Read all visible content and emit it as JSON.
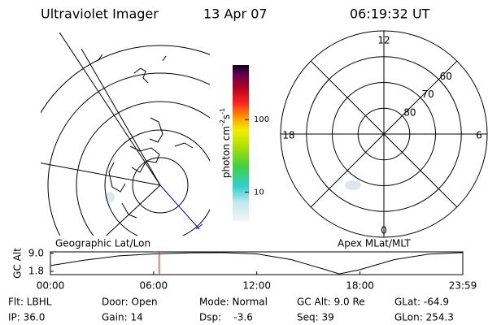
{
  "header": {
    "title": "Ultraviolet Imager",
    "date": "13 Apr 07",
    "time": "06:19:32 UT"
  },
  "colorbar": {
    "label": {
      "base": "photon cm",
      "exp1": "-2",
      "mid": "s",
      "exp2": "-1"
    },
    "log": true,
    "lim": [
      4,
      565
    ],
    "ticks": [
      10,
      100
    ]
  },
  "map": {
    "label": "Geographic Lat/Lon"
  },
  "polar": {
    "label": "Apex MLat/MLT",
    "mlat_lim": [
      50,
      90
    ],
    "mlat_ticks": [
      60,
      70,
      80
    ],
    "mlt_ticks": [
      12,
      18,
      6,
      0
    ]
  },
  "altitude_plot": {
    "type": "line",
    "y_label": "GC Alt",
    "color": "#000000",
    "marker_color": "#ff0000",
    "x": [
      0,
      2,
      4,
      6,
      8,
      10,
      12,
      14,
      16,
      16.8,
      18,
      20,
      22,
      23.98
    ],
    "values": [
      4.1,
      6.3,
      8.0,
      8.8,
      9.2,
      9.3,
      8.8,
      6.5,
      2.5,
      0.8,
      2.5,
      6.5,
      8.7,
      9.3
    ],
    "marker_x": 6.33,
    "xlim": [
      0,
      23.98
    ],
    "ylim": [
      0.5,
      9.6
    ],
    "xticks": [
      {
        "value": 0,
        "label": "00:00"
      },
      {
        "value": 6,
        "label": "06:00"
      },
      {
        "value": 12,
        "label": "12:00"
      },
      {
        "value": 18,
        "label": "18:00"
      },
      {
        "value": 23.98,
        "label": "23:59"
      }
    ],
    "yticks": [
      {
        "value": 9,
        "label": "9.0"
      },
      {
        "value": 1.8,
        "label": "1.8"
      }
    ]
  },
  "info": [
    [
      "Flt: LBHL",
      "Door: Open",
      "Mode: Normal",
      "GC Alt: 9.0 Re",
      "GLat: -64.9"
    ],
    [
      "IP: 36.0",
      "Gain: 14",
      "Dsp:    -3.6",
      "Seq: 39",
      "GLon: 254.3"
    ]
  ]
}
